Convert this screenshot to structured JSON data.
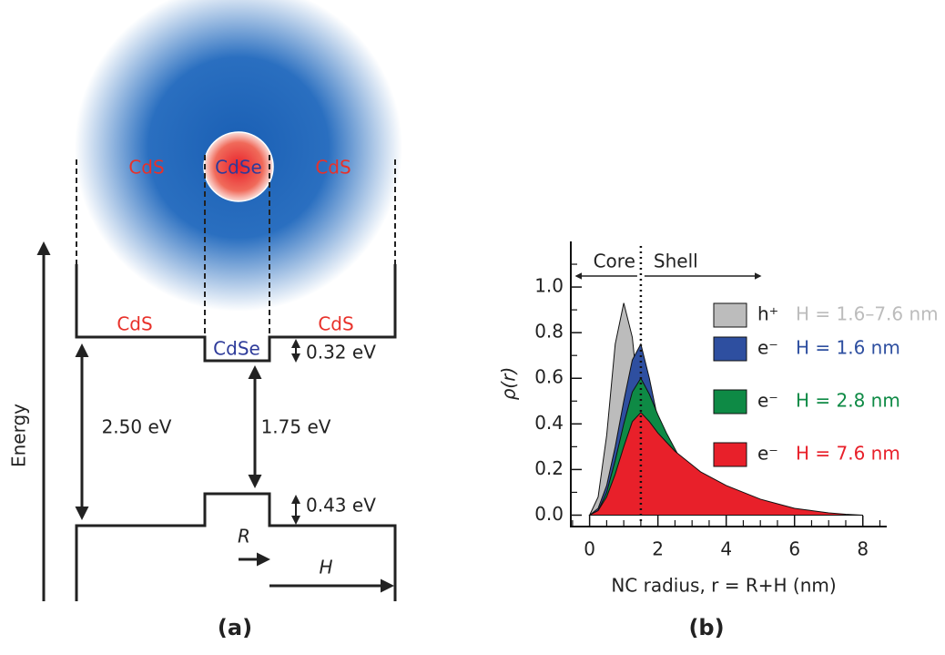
{
  "panel_a": {
    "shell_top_left": "CdS",
    "core_top": "CdSe",
    "shell_top_right": "CdS",
    "cb_left": "CdS",
    "cb_right": "CdS",
    "cb_core": "CdSe",
    "cb_offset": "0.32 eV",
    "gap_shell": "2.50 eV",
    "gap_core": "1.75 eV",
    "vb_offset": "0.43 eV",
    "energy_axis": "Energy",
    "core_radius_label": "R",
    "shell_thickness_label": "H",
    "caption": "(a)"
  },
  "chart_data": {
    "type": "area",
    "caption": "(b)",
    "x_label": "NC radius, r = R+H (nm)",
    "y_label": "ρ(r)",
    "core_text": "Core",
    "shell_text": "Shell",
    "core_radius": 1.5,
    "x": [
      0,
      0.25,
      0.5,
      0.75,
      1,
      1.25,
      1.5,
      1.75,
      2,
      2.25,
      2.5,
      2.75,
      3,
      3.25,
      3.5,
      3.75,
      4,
      4.25,
      4.5,
      4.75,
      5,
      5.25,
      5.5,
      5.75,
      6,
      6.25,
      6.5,
      6.75,
      7,
      7.25,
      7.5,
      7.75,
      8
    ],
    "series": [
      {
        "name": "h⁺",
        "label": "H = 1.6–7.6 nm",
        "color": "#bcbcbc",
        "values": [
          0,
          0.08,
          0.35,
          0.75,
          0.93,
          0.78,
          0.42,
          0.15,
          0.03,
          0,
          0,
          0,
          0,
          0,
          0,
          0,
          0,
          0,
          0,
          0,
          0,
          0,
          0,
          0,
          0,
          0,
          0,
          0,
          0,
          0,
          0,
          0,
          0
        ]
      },
      {
        "name": "e⁻",
        "label": "H = 1.6 nm",
        "color": "#2e4fa0",
        "values": [
          0,
          0.03,
          0.13,
          0.3,
          0.5,
          0.68,
          0.75,
          0.6,
          0.42,
          0.27,
          0.15,
          0.07,
          0.02,
          0,
          0,
          0,
          0,
          0,
          0,
          0,
          0,
          0,
          0,
          0,
          0,
          0,
          0,
          0,
          0,
          0,
          0,
          0,
          0
        ]
      },
      {
        "name": "e⁻",
        "label": "H = 2.8 nm",
        "color": "#0e8a45",
        "values": [
          0,
          0.02,
          0.1,
          0.24,
          0.4,
          0.54,
          0.6,
          0.53,
          0.44,
          0.36,
          0.29,
          0.22,
          0.16,
          0.11,
          0.07,
          0.04,
          0.02,
          0.01,
          0,
          0,
          0,
          0,
          0,
          0,
          0,
          0,
          0,
          0,
          0,
          0,
          0,
          0,
          0
        ]
      },
      {
        "name": "e⁻",
        "label": "H = 7.6 nm",
        "color": "#e8202a",
        "values": [
          0,
          0.02,
          0.08,
          0.18,
          0.3,
          0.41,
          0.45,
          0.41,
          0.36,
          0.32,
          0.28,
          0.25,
          0.22,
          0.19,
          0.17,
          0.15,
          0.13,
          0.115,
          0.1,
          0.085,
          0.07,
          0.06,
          0.05,
          0.04,
          0.03,
          0.025,
          0.02,
          0.015,
          0.01,
          0.007,
          0.004,
          0.002,
          0
        ]
      }
    ],
    "xlim": [
      -0.55,
      8.7
    ],
    "ylim": [
      -0.05,
      1.2
    ],
    "xticks": [
      0,
      2,
      4,
      6,
      8
    ],
    "xminorticks": [
      -0.5,
      0.5,
      1,
      1.5,
      2.5,
      3,
      3.5,
      4.5,
      5,
      5.5,
      6.5,
      7,
      7.5,
      8.5
    ],
    "yticks": [
      {
        "value": 0,
        "label": "0.0"
      },
      {
        "value": 0.2,
        "label": "0.2"
      },
      {
        "value": 0.4,
        "label": "0.4"
      },
      {
        "value": 0.6,
        "label": "0.6"
      },
      {
        "value": 0.8,
        "label": "0.8"
      },
      {
        "value": 1.0,
        "label": "1.0"
      }
    ],
    "yminorticks": [
      0.1,
      0.3,
      0.5,
      0.7,
      0.9,
      1.1
    ]
  }
}
